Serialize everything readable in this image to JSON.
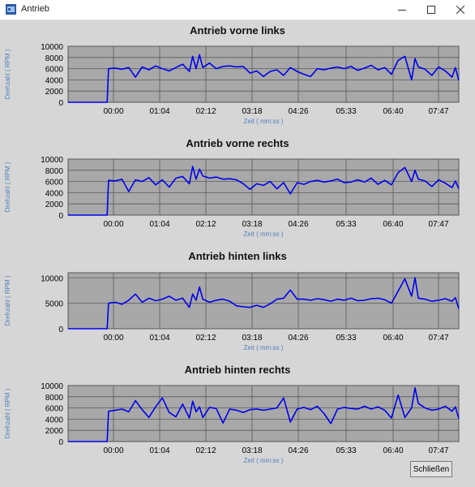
{
  "window": {
    "title": "Antrieb",
    "minimize_icon": "minimize-icon",
    "maximize_icon": "maximize-icon",
    "close_icon": "close-icon"
  },
  "close_button_label": "Schließen",
  "colors": {
    "series": "#0000ee",
    "axis_label": "#4f81bd",
    "plot_bg": "#a8a8a8",
    "client_bg": "#d6d6d6"
  },
  "chart_data": [
    {
      "type": "line",
      "title": "Antrieb vorne links",
      "xlabel": "Zeit ( mm:ss )",
      "ylabel": "Drehzahl ( RPM )",
      "x_ticks": [
        "00:00",
        "01:04",
        "02:12",
        "03:18",
        "04:26",
        "05:33",
        "06:40",
        "07:47"
      ],
      "y_ticks": [
        0,
        2000,
        4000,
        6000,
        8000,
        10000
      ],
      "ylim": [
        0,
        10000
      ],
      "xlim": [
        -60,
        520
      ],
      "grid": true,
      "x": [
        -60,
        -2,
        0,
        10,
        20,
        30,
        40,
        50,
        60,
        70,
        80,
        90,
        100,
        110,
        120,
        125,
        130,
        135,
        140,
        150,
        160,
        170,
        180,
        190,
        200,
        210,
        220,
        230,
        240,
        250,
        260,
        270,
        280,
        290,
        300,
        310,
        320,
        330,
        340,
        350,
        360,
        370,
        380,
        390,
        400,
        410,
        420,
        430,
        440,
        450,
        455,
        460,
        470,
        480,
        490,
        500,
        510,
        515,
        520
      ],
      "y": [
        0,
        0,
        6000,
        6100,
        5900,
        6200,
        4500,
        6300,
        5800,
        6500,
        6000,
        5600,
        6200,
        6800,
        5500,
        8200,
        6000,
        8500,
        6200,
        7000,
        6000,
        6400,
        6500,
        6300,
        6400,
        5200,
        5600,
        4600,
        5500,
        5800,
        4800,
        6200,
        5500,
        5000,
        4600,
        6000,
        5800,
        6100,
        6300,
        6000,
        6400,
        5700,
        6100,
        6600,
        5800,
        6200,
        5000,
        7500,
        8200,
        4000,
        7800,
        6300,
        5900,
        4800,
        6300,
        5600,
        4500,
        6200,
        3900
      ]
    },
    {
      "type": "line",
      "title": "Antrieb vorne rechts",
      "xlabel": "Zeit ( mm:ss )",
      "ylabel": "Drehzahl ( RPM )",
      "x_ticks": [
        "00:00",
        "01:04",
        "02:12",
        "03:18",
        "04:26",
        "05:33",
        "06:40",
        "07:47"
      ],
      "y_ticks": [
        0,
        2000,
        4000,
        6000,
        8000,
        10000
      ],
      "ylim": [
        0,
        10000
      ],
      "xlim": [
        -60,
        520
      ],
      "grid": true,
      "x": [
        -60,
        -2,
        0,
        10,
        20,
        30,
        40,
        50,
        60,
        70,
        80,
        90,
        100,
        110,
        120,
        125,
        130,
        135,
        140,
        150,
        160,
        170,
        180,
        190,
        200,
        210,
        220,
        230,
        240,
        250,
        260,
        270,
        280,
        290,
        300,
        310,
        320,
        330,
        340,
        350,
        360,
        370,
        380,
        390,
        400,
        410,
        420,
        430,
        440,
        450,
        455,
        460,
        470,
        480,
        490,
        500,
        510,
        515,
        520
      ],
      "y": [
        0,
        0,
        6200,
        6100,
        6400,
        4200,
        6300,
        6000,
        6700,
        5400,
        6300,
        5000,
        6600,
        6900,
        5600,
        8700,
        6400,
        8200,
        7000,
        6600,
        6800,
        6400,
        6500,
        6300,
        5600,
        4600,
        5600,
        5300,
        6000,
        4700,
        5800,
        3800,
        5800,
        5500,
        6000,
        6200,
        5900,
        6100,
        6400,
        5800,
        5900,
        6300,
        5900,
        6600,
        5500,
        6200,
        5400,
        7600,
        8500,
        6000,
        8000,
        6400,
        6100,
        5100,
        6300,
        5700,
        4900,
        6100,
        4700
      ]
    },
    {
      "type": "line",
      "title": "Antrieb hinten links",
      "xlabel": "Zeit ( mm:ss )",
      "ylabel": "Drehzahl ( RPM )",
      "x_ticks": [
        "00:00",
        "01:04",
        "02:12",
        "03:18",
        "04:26",
        "05:33",
        "06:40",
        "07:47"
      ],
      "y_ticks": [
        0,
        5000,
        10000
      ],
      "ylim": [
        0,
        11000
      ],
      "xlim": [
        -60,
        520
      ],
      "grid": true,
      "x": [
        -60,
        -2,
        0,
        10,
        20,
        30,
        40,
        50,
        60,
        70,
        80,
        90,
        100,
        110,
        120,
        125,
        130,
        135,
        140,
        150,
        160,
        170,
        180,
        190,
        200,
        210,
        220,
        230,
        240,
        250,
        260,
        270,
        280,
        290,
        300,
        310,
        320,
        330,
        340,
        350,
        360,
        370,
        380,
        390,
        400,
        410,
        420,
        430,
        440,
        450,
        455,
        460,
        470,
        480,
        490,
        500,
        510,
        515,
        520
      ],
      "y": [
        0,
        0,
        5000,
        5200,
        4800,
        5600,
        6800,
        5200,
        6000,
        5500,
        5800,
        6400,
        5600,
        6000,
        4200,
        6800,
        5600,
        8200,
        5800,
        5200,
        5600,
        5800,
        5400,
        4500,
        4300,
        4200,
        4600,
        4200,
        4900,
        5800,
        6000,
        7600,
        5800,
        5800,
        5600,
        5900,
        5700,
        5400,
        5800,
        5600,
        6000,
        5500,
        5600,
        5900,
        6000,
        5700,
        5000,
        7400,
        9800,
        6400,
        10000,
        6000,
        5800,
        5400,
        5600,
        5900,
        5400,
        6100,
        3900
      ]
    },
    {
      "type": "line",
      "title": "Antrieb hinten rechts",
      "xlabel": "Zeit ( mm:ss )",
      "ylabel": "Drehzahl ( RPM )",
      "x_ticks": [
        "00:00",
        "01:04",
        "02:12",
        "03:18",
        "04:26",
        "05:33",
        "06:40",
        "07:47"
      ],
      "y_ticks": [
        0,
        2000,
        4000,
        6000,
        8000,
        10000
      ],
      "ylim": [
        0,
        10000
      ],
      "xlim": [
        -60,
        520
      ],
      "grid": true,
      "x": [
        -60,
        -2,
        0,
        10,
        20,
        30,
        40,
        50,
        60,
        70,
        80,
        90,
        100,
        110,
        120,
        125,
        130,
        135,
        140,
        150,
        160,
        170,
        180,
        190,
        200,
        210,
        220,
        230,
        240,
        250,
        260,
        270,
        280,
        290,
        300,
        310,
        320,
        330,
        340,
        350,
        360,
        370,
        380,
        390,
        400,
        410,
        420,
        430,
        440,
        450,
        455,
        460,
        470,
        480,
        490,
        500,
        510,
        515,
        520
      ],
      "y": [
        0,
        0,
        5400,
        5600,
        5800,
        5300,
        7300,
        5700,
        4300,
        6200,
        7800,
        5200,
        4400,
        6700,
        4200,
        7200,
        5300,
        6200,
        4300,
        6100,
        5900,
        3300,
        5800,
        5600,
        5200,
        5700,
        5800,
        5600,
        5800,
        6000,
        7800,
        3500,
        5800,
        6100,
        5700,
        6300,
        5000,
        3200,
        5800,
        6100,
        5900,
        5800,
        6300,
        5800,
        6200,
        5600,
        4200,
        8300,
        4300,
        6000,
        9600,
        6800,
        6000,
        5600,
        5800,
        6300,
        5400,
        6200,
        4100
      ]
    }
  ]
}
